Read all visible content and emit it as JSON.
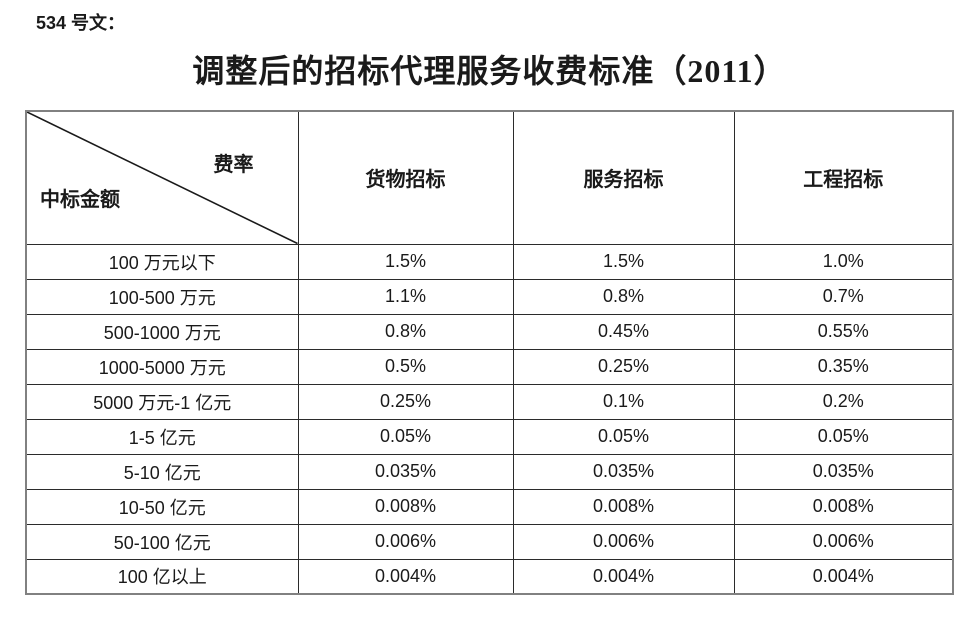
{
  "page": {
    "doc_number": "534 号文：",
    "title": "调整后的招标代理服务收费标准（2011）"
  },
  "table": {
    "corner": {
      "top_right_label": "费率",
      "bottom_left_label": "中标金额"
    },
    "columns": [
      "货物招标",
      "服务招标",
      "工程招标"
    ],
    "rows": [
      {
        "label": "100 万元以下",
        "values": [
          "1.5%",
          "1.5%",
          "1.0%"
        ]
      },
      {
        "label": "100-500 万元",
        "values": [
          "1.1%",
          "0.8%",
          "0.7%"
        ]
      },
      {
        "label": "500-1000 万元",
        "values": [
          "0.8%",
          "0.45%",
          "0.55%"
        ]
      },
      {
        "label": "1000-5000 万元",
        "values": [
          "0.5%",
          "0.25%",
          "0.35%"
        ]
      },
      {
        "label": "5000 万元-1 亿元",
        "values": [
          "0.25%",
          "0.1%",
          "0.2%"
        ]
      },
      {
        "label": "1-5 亿元",
        "values": [
          "0.05%",
          "0.05%",
          "0.05%"
        ]
      },
      {
        "label": "5-10 亿元",
        "values": [
          "0.035%",
          "0.035%",
          "0.035%"
        ]
      },
      {
        "label": "10-50 亿元",
        "values": [
          "0.008%",
          "0.008%",
          "0.008%"
        ]
      },
      {
        "label": "50-100 亿元",
        "values": [
          "0.006%",
          "0.006%",
          "0.006%"
        ]
      },
      {
        "label": "100 亿以上",
        "values": [
          "0.004%",
          "0.004%",
          "0.004%"
        ]
      }
    ]
  },
  "colors": {
    "text": "#1a1a1a",
    "border_inner": "#2b2b2b",
    "border_outer": "#818181",
    "background": "#ffffff"
  }
}
